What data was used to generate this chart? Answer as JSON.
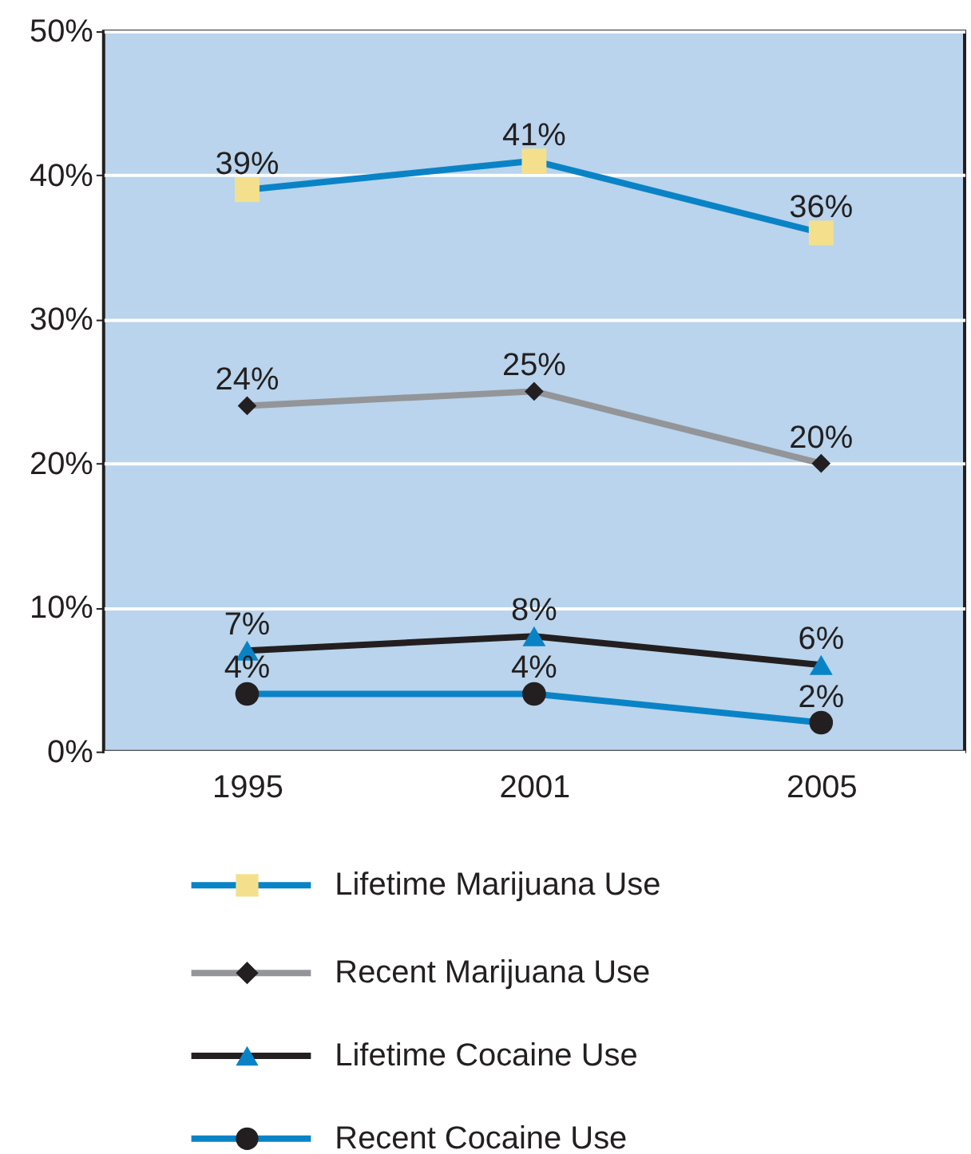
{
  "chart_data": {
    "type": "line",
    "categories": [
      "1995",
      "2001",
      "2005"
    ],
    "series": [
      {
        "name": "Lifetime Marijuana Use",
        "color": "#0a83c6",
        "colors": [
          "#f4e08c",
          "#f4e08c",
          "#f4e08c"
        ],
        "marker": "square",
        "values": [
          39,
          41,
          36
        ],
        "value_labels": [
          "39%",
          "41%",
          "36%"
        ]
      },
      {
        "name": "Recent Marijuana Use",
        "color": "#939598",
        "colors": [
          "#231f20",
          "#231f20",
          "#231f20"
        ],
        "marker": "diamond",
        "values": [
          24,
          25,
          20
        ],
        "value_labels": [
          "24%",
          "25%",
          "20%"
        ]
      },
      {
        "name": "Lifetime Cocaine Use",
        "color": "#231f20",
        "colors": [
          "#0a83c6",
          "#0a83c6",
          "#0a83c6"
        ],
        "marker": "triangle",
        "values": [
          7,
          8,
          6
        ],
        "value_labels": [
          "7%",
          "8%",
          "6%"
        ]
      },
      {
        "name": "Recent Cocaine Use",
        "color": "#0a83c6",
        "colors": [
          "#231f20",
          "#231f20",
          "#231f20"
        ],
        "marker": "circle",
        "values": [
          4,
          4,
          2
        ],
        "value_labels": [
          "4%",
          "4%",
          "2%"
        ]
      }
    ],
    "ylim": [
      0,
      50
    ],
    "yticks": [
      {
        "value": 0,
        "label": "0%"
      },
      {
        "value": 10,
        "label": "10%"
      },
      {
        "value": 20,
        "label": "20%"
      },
      {
        "value": 30,
        "label": "30%"
      },
      {
        "value": 40,
        "label": "40%"
      },
      {
        "value": 50,
        "label": "50%"
      }
    ],
    "grid": "y",
    "legend": "bottom"
  }
}
